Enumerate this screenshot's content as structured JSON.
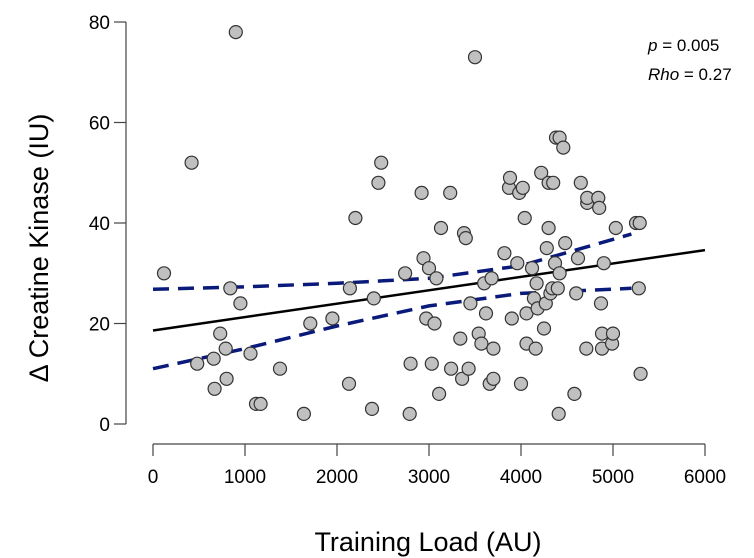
{
  "chart_data": {
    "type": "scatter",
    "title": "",
    "xlabel": "Training Load (AU)",
    "ylabel": "Δ Creatine Kinase (IU)",
    "xlim": [
      0,
      6000
    ],
    "ylim": [
      0,
      80
    ],
    "xticks": [
      0,
      1000,
      2000,
      3000,
      4000,
      5000,
      6000
    ],
    "yticks": [
      0,
      20,
      40,
      60,
      80
    ],
    "xtick_labels": [
      "0",
      "1000",
      "2000",
      "3000",
      "4000",
      "5000",
      "6000"
    ],
    "ytick_labels": [
      "0",
      "20",
      "40",
      "60",
      "80"
    ],
    "grid": false,
    "legend": "none",
    "point_color": "#c0c0c0",
    "point_edge_color": "#333333",
    "fit_color": "#000000",
    "ci_color": "#0a1a7a",
    "annotation": {
      "p_label": "p",
      "p_value": " = 0.005",
      "rho_label": "Rho",
      "rho_value": " = 0.27"
    },
    "points": [
      [
        120,
        30
      ],
      [
        420,
        52
      ],
      [
        480,
        12
      ],
      [
        660,
        13
      ],
      [
        670,
        7
      ],
      [
        730,
        18
      ],
      [
        790,
        15
      ],
      [
        800,
        9
      ],
      [
        840,
        27
      ],
      [
        900,
        78
      ],
      [
        950,
        24
      ],
      [
        1060,
        14
      ],
      [
        1120,
        4
      ],
      [
        1170,
        4
      ],
      [
        1380,
        11
      ],
      [
        1640,
        2
      ],
      [
        1710,
        20
      ],
      [
        1950,
        21
      ],
      [
        2130,
        8
      ],
      [
        2140,
        27
      ],
      [
        2200,
        41
      ],
      [
        2380,
        3
      ],
      [
        2400,
        25
      ],
      [
        2450,
        48
      ],
      [
        2480,
        52
      ],
      [
        2740,
        30
      ],
      [
        2790,
        2
      ],
      [
        2800,
        12
      ],
      [
        2920,
        46
      ],
      [
        2940,
        33
      ],
      [
        2970,
        21
      ],
      [
        3000,
        31
      ],
      [
        3030,
        12
      ],
      [
        3060,
        20
      ],
      [
        3080,
        29
      ],
      [
        3110,
        6
      ],
      [
        3130,
        39
      ],
      [
        3230,
        46
      ],
      [
        3240,
        11
      ],
      [
        3340,
        17
      ],
      [
        3360,
        9
      ],
      [
        3380,
        38
      ],
      [
        3400,
        37
      ],
      [
        3430,
        11
      ],
      [
        3450,
        24
      ],
      [
        3500,
        73
      ],
      [
        3540,
        18
      ],
      [
        3570,
        16
      ],
      [
        3600,
        28
      ],
      [
        3620,
        22
      ],
      [
        3660,
        8
      ],
      [
        3680,
        29
      ],
      [
        3700,
        15
      ],
      [
        3700,
        9
      ],
      [
        3820,
        34
      ],
      [
        3870,
        47
      ],
      [
        3880,
        49
      ],
      [
        3900,
        21
      ],
      [
        3960,
        32
      ],
      [
        3980,
        46
      ],
      [
        4000,
        8
      ],
      [
        4020,
        47
      ],
      [
        4040,
        41
      ],
      [
        4060,
        22
      ],
      [
        4060,
        16
      ],
      [
        4120,
        31
      ],
      [
        4140,
        25
      ],
      [
        4160,
        15
      ],
      [
        4170,
        28
      ],
      [
        4180,
        23
      ],
      [
        4220,
        50
      ],
      [
        4250,
        19
      ],
      [
        4270,
        24
      ],
      [
        4280,
        35
      ],
      [
        4300,
        48
      ],
      [
        4300,
        39
      ],
      [
        4320,
        26
      ],
      [
        4340,
        27
      ],
      [
        4350,
        48
      ],
      [
        4370,
        32
      ],
      [
        4380,
        57
      ],
      [
        4400,
        27
      ],
      [
        4410,
        2
      ],
      [
        4420,
        57
      ],
      [
        4420,
        30
      ],
      [
        4460,
        55
      ],
      [
        4480,
        36
      ],
      [
        4580,
        6
      ],
      [
        4600,
        26
      ],
      [
        4620,
        33
      ],
      [
        4650,
        48
      ],
      [
        4710,
        15
      ],
      [
        4720,
        44
      ],
      [
        4720,
        45
      ],
      [
        4840,
        45
      ],
      [
        4850,
        43
      ],
      [
        4870,
        24
      ],
      [
        4880,
        18
      ],
      [
        4880,
        15
      ],
      [
        4900,
        32
      ],
      [
        4990,
        16
      ],
      [
        5000,
        18
      ],
      [
        5030,
        39
      ],
      [
        5250,
        40
      ],
      [
        5280,
        27
      ],
      [
        5290,
        40
      ],
      [
        5300,
        10
      ]
    ],
    "fit_line": [
      [
        0,
        18.6
      ],
      [
        6000,
        34.6
      ]
    ],
    "ci_upper": [
      [
        0,
        26.8
      ],
      [
        1000,
        27.3
      ],
      [
        2000,
        28
      ],
      [
        3000,
        29
      ],
      [
        4000,
        31.5
      ],
      [
        5200,
        37.8
      ]
    ],
    "ci_lower": [
      [
        0,
        11
      ],
      [
        1000,
        15
      ],
      [
        2000,
        19.5
      ],
      [
        3000,
        23.5
      ],
      [
        4000,
        26
      ],
      [
        5200,
        27
      ]
    ]
  }
}
